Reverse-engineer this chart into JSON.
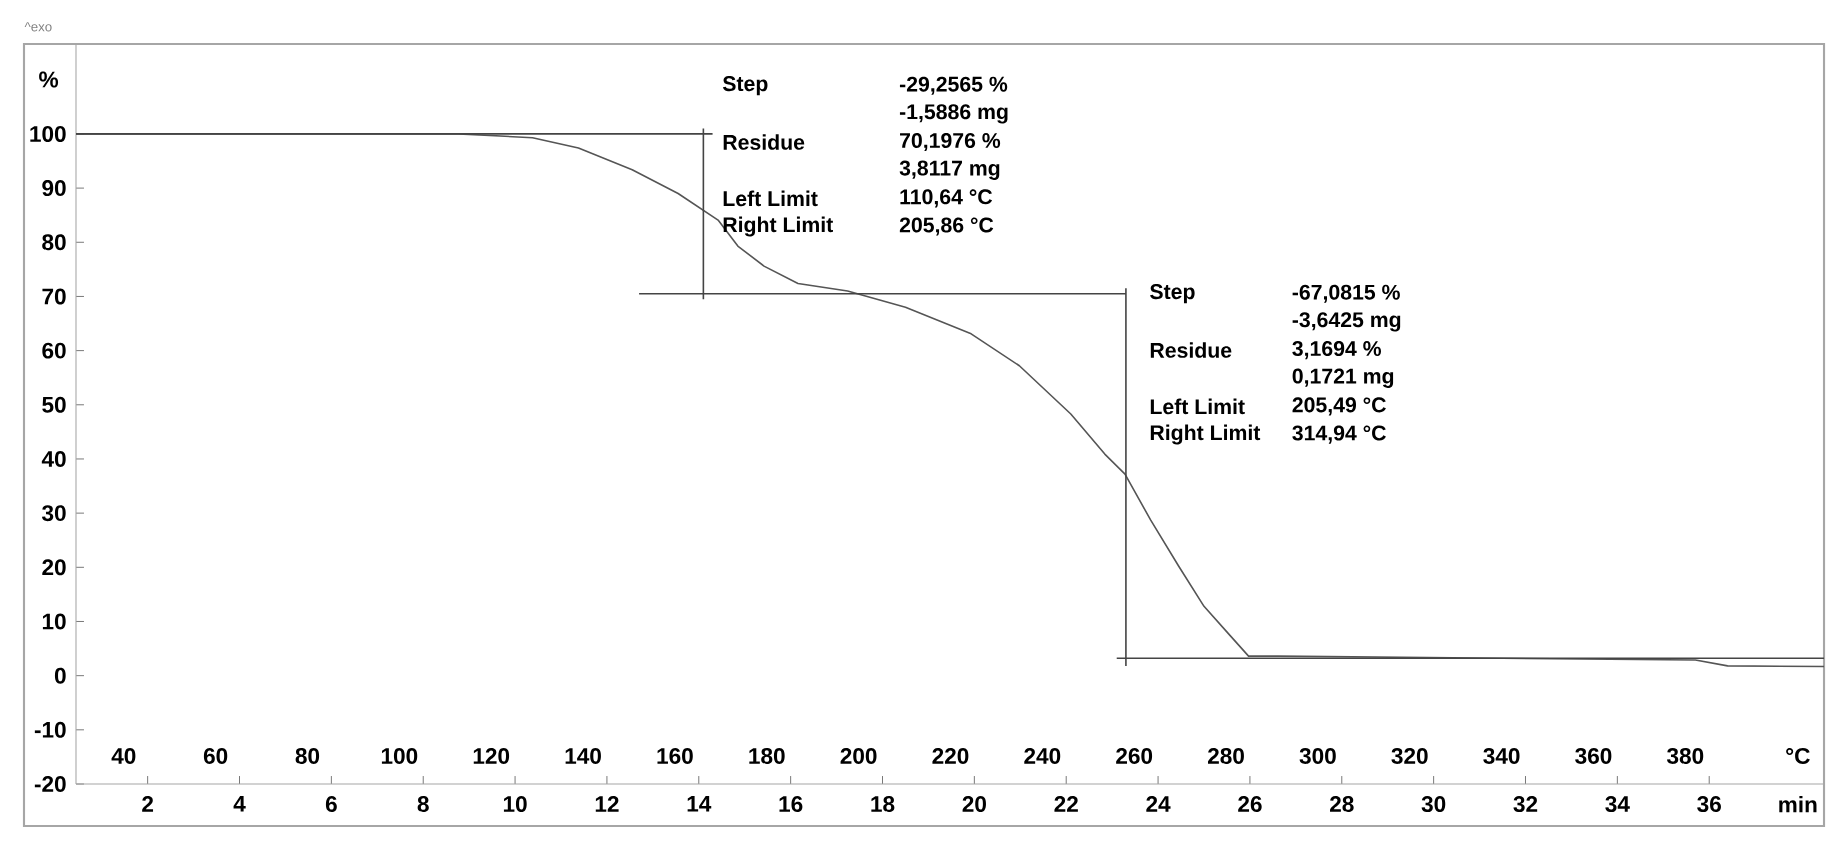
{
  "chart_data": {
    "type": "line",
    "xlabel": "min",
    "ylabel": "%",
    "x2label": "°C",
    "xlim": [
      0.44,
      38.5
    ],
    "xticks": [
      2,
      4,
      6,
      8,
      10,
      12,
      14,
      16,
      18,
      20,
      22,
      24,
      26,
      28,
      30,
      32,
      34,
      36
    ],
    "x2lim": [
      29.6,
      410.2
    ],
    "x2ticks": [
      40,
      60,
      80,
      100,
      120,
      140,
      160,
      180,
      200,
      220,
      240,
      260,
      280,
      300,
      320,
      340,
      360,
      380
    ],
    "ylim": [
      -20,
      116.6
    ],
    "yticks": [
      -20,
      -10,
      0,
      10,
      20,
      30,
      40,
      50,
      60,
      70,
      80,
      90,
      100
    ],
    "series": [
      {
        "color": "#555555",
        "x": [
          0.44,
          5,
          8.77,
          10.38,
          11.38,
          12.55,
          13.55,
          14.42,
          14.85,
          15.42,
          16.16,
          17.24,
          18.5,
          19.93,
          20.98,
          22.1,
          22.84,
          23.28,
          23.84,
          24.45,
          25.0,
          25.58,
          25.97,
          26.6,
          31.5,
          35.7,
          36.4,
          38.5
        ],
        "values": [
          100,
          100,
          100,
          99.3,
          97.4,
          93.4,
          89,
          84.1,
          79.3,
          75.6,
          72.4,
          71,
          68,
          63.1,
          57.2,
          48.3,
          40.9,
          37.2,
          28.7,
          20.2,
          12.8,
          7.3,
          3.6,
          3.6,
          3.2,
          2.9,
          1.8,
          1.7
        ]
      },
      {
        "color": "#444444",
        "x": [
          0.44,
          14.3,
          null,
          14.1,
          14.1,
          null,
          12.7,
          23.3,
          null,
          23.3,
          23.3,
          null,
          23.1,
          38.5
        ],
        "values": [
          100,
          100,
          null,
          101,
          69.5,
          null,
          70.5,
          70.5,
          null,
          71.5,
          1.8,
          null,
          3.2,
          3.2
        ]
      }
    ],
    "annotations": [
      "Step",
      "-29,2565 %",
      "-1,5886 mg",
      "Residue",
      "70,1976 %",
      "3,8117 mg",
      "Left Limit",
      "110,64 °C",
      "Right Limit",
      "205,86 °C",
      "Step",
      "-67,0815 %",
      "-3,6425 mg",
      "Residue",
      "3,1694 %",
      "0,1721 mg",
      "Left Limit",
      "205,49 °C",
      "Right Limit",
      "314,94 °C",
      "^exo"
    ]
  }
}
